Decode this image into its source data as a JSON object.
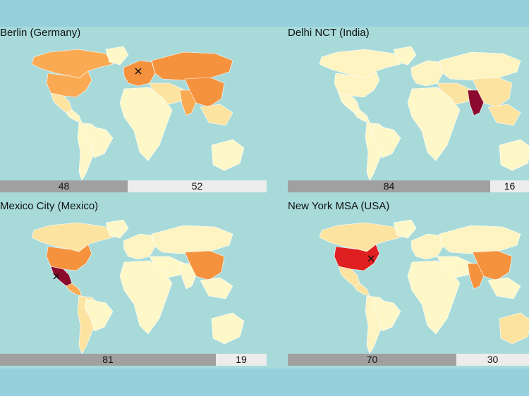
{
  "panels": [
    {
      "title": "Berlin (Germany)",
      "home_color": "#f5923e",
      "marker": true,
      "bar_left": "48",
      "bar_right": "52",
      "bar_left_fraction": 0.48,
      "colors": {
        "na": "#fbaa54",
        "usa": "#fbaa54",
        "mexico": "#fde3a0",
        "central_america": "#fef4c2",
        "south_america": "#fef7c8",
        "brazil": "#fef7c8",
        "europe": "#f5923e",
        "russia": "#f5923e",
        "middle_east": "#fde3a0",
        "africa": "#fef7c8",
        "india": "#fbaa54",
        "china": "#f5923e",
        "se_asia": "#fde3a0",
        "australia": "#fef7c8"
      }
    },
    {
      "title": "Delhi NCT (India)",
      "home_color": "#8b0a2e",
      "marker": false,
      "bar_left": "84",
      "bar_right": "16",
      "bar_left_fraction": 0.84,
      "colors": {
        "na": "#fef4c2",
        "usa": "#fef4c2",
        "mexico": "#fef7c8",
        "central_america": "#fef7c8",
        "south_america": "#fef7c8",
        "brazil": "#fef7c8",
        "europe": "#fef4c2",
        "russia": "#fef4c2",
        "middle_east": "#fde3a0",
        "africa": "#fef7c8",
        "india": "#8b0a2e",
        "china": "#fde3a0",
        "se_asia": "#fde3a0",
        "australia": "#fef7c8"
      }
    },
    {
      "title": "Mexico City (Mexico)",
      "home_color": "#8b0a2e",
      "marker": true,
      "bar_left": "81",
      "bar_right": "19",
      "bar_left_fraction": 0.81,
      "colors": {
        "na": "#fde3a0",
        "usa": "#f5923e",
        "mexico": "#8b0a2e",
        "central_america": "#fbaa54",
        "south_america": "#fde3a0",
        "brazil": "#fef7c8",
        "europe": "#fef4c2",
        "russia": "#fef4c2",
        "middle_east": "#fef7c8",
        "africa": "#fef7c8",
        "india": "#fef7c8",
        "china": "#f5923e",
        "se_asia": "#fef7c8",
        "australia": "#fef7c8"
      }
    },
    {
      "title": "New York MSA (USA)",
      "home_color": "#e02020",
      "marker": true,
      "bar_left": "70",
      "bar_right": "30",
      "bar_left_fraction": 0.7,
      "colors": {
        "na": "#fde3a0",
        "usa": "#e02020",
        "mexico": "#fde3a0",
        "central_america": "#fde3a0",
        "south_america": "#fef4c2",
        "brazil": "#fef7c8",
        "europe": "#fef4c2",
        "russia": "#fef4c2",
        "middle_east": "#fef7c8",
        "africa": "#fef7c8",
        "india": "#f5923e",
        "china": "#f5923e",
        "se_asia": "#fef7c8",
        "australia": "#fde3a0"
      }
    }
  ]
}
